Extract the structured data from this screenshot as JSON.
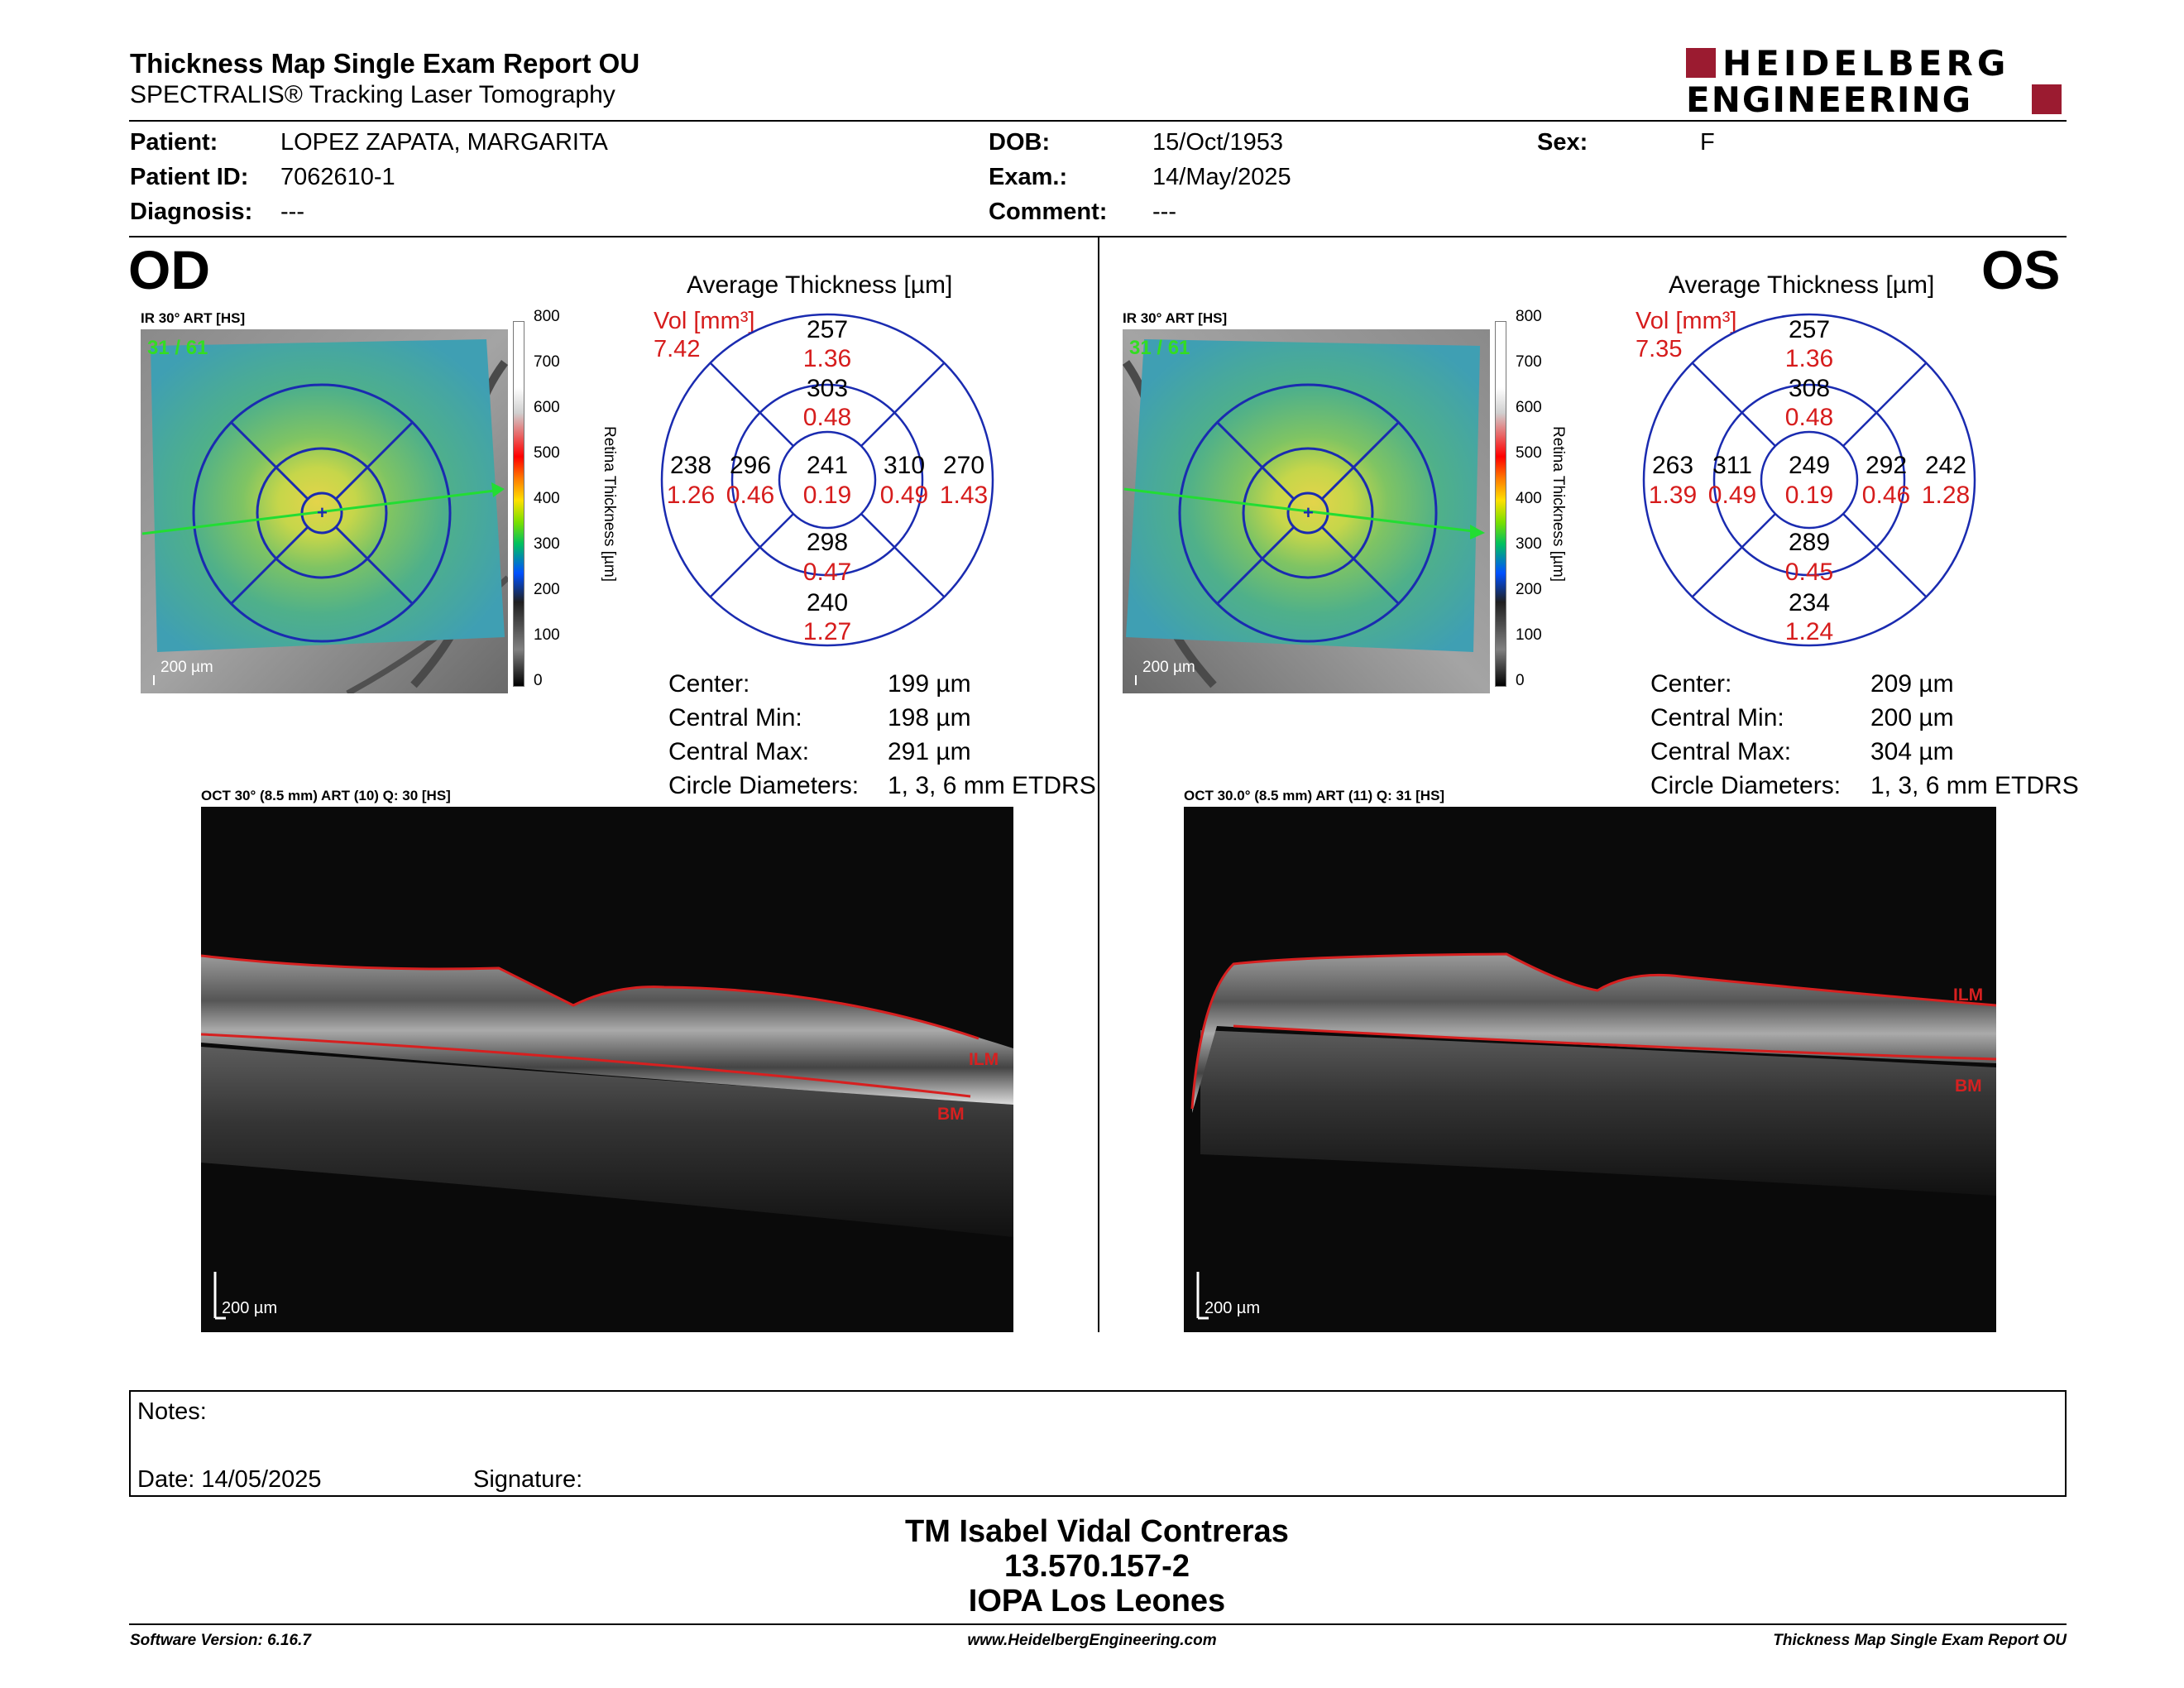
{
  "header": {
    "title": "Thickness Map Single Exam Report OU",
    "subtitle": "SPECTRALIS® Tracking Laser Tomography",
    "logo_line1": "HEIDELBERG",
    "logo_line2": "ENGINEERING",
    "brand_color": "#9b1b30"
  },
  "patient": {
    "patient_label": "Patient:",
    "patient_value": "LOPEZ ZAPATA, MARGARITA",
    "id_label": "Patient ID:",
    "id_value": "7062610-1",
    "diagnosis_label": "Diagnosis:",
    "diagnosis_value": "---",
    "dob_label": "DOB:",
    "dob_value": "15/Oct/1953",
    "exam_label": "Exam.:",
    "exam_value": "14/May/2025",
    "comment_label": "Comment:",
    "comment_value": "---",
    "sex_label": "Sex:",
    "sex_value": "F"
  },
  "scale": {
    "ticks": [
      "800",
      "700",
      "600",
      "500",
      "400",
      "300",
      "200",
      "100",
      "0"
    ],
    "label": "Retina Thickness [µm]"
  },
  "od": {
    "eye": "OD",
    "ir_caption": "IR 30° ART [HS]",
    "ir_count": "31 / 61",
    "ir_scalebar": "200 µm",
    "chart_title": "Average Thickness [µm]",
    "vol_label": "Vol [mm³]",
    "vol_value": "7.42",
    "etdrs": {
      "center_t": "241",
      "center_v": "0.19",
      "inner_sup_t": "303",
      "inner_sup_v": "0.48",
      "inner_inf_t": "298",
      "inner_inf_v": "0.47",
      "inner_left_t": "296",
      "inner_left_v": "0.46",
      "inner_right_t": "310",
      "inner_right_v": "0.49",
      "outer_sup_t": "257",
      "outer_sup_v": "1.36",
      "outer_inf_t": "240",
      "outer_inf_v": "1.27",
      "outer_left_t": "238",
      "outer_left_v": "1.26",
      "outer_right_t": "270",
      "outer_right_v": "1.43"
    },
    "stats": {
      "center_label": "Center:",
      "center_value": "199 µm",
      "min_label": "Central Min:",
      "min_value": "198 µm",
      "max_label": "Central Max:",
      "max_value": "291 µm",
      "diam_label": "Circle Diameters:",
      "diam_value": "1, 3, 6 mm ETDRS"
    },
    "oct_caption": "OCT 30° (8.5 mm) ART (10) Q: 30 [HS]",
    "oct_scalebar": "200 µm",
    "ilm": "ILM",
    "bm": "BM"
  },
  "os": {
    "eye": "OS",
    "ir_caption": "IR 30° ART [HS]",
    "ir_count": "31 / 61",
    "ir_scalebar": "200 µm",
    "chart_title": "Average Thickness [µm]",
    "vol_label": "Vol [mm³]",
    "vol_value": "7.35",
    "etdrs": {
      "center_t": "249",
      "center_v": "0.19",
      "inner_sup_t": "308",
      "inner_sup_v": "0.48",
      "inner_inf_t": "289",
      "inner_inf_v": "0.45",
      "inner_left_t": "311",
      "inner_left_v": "0.49",
      "inner_right_t": "292",
      "inner_right_v": "0.46",
      "outer_sup_t": "257",
      "outer_sup_v": "1.36",
      "outer_inf_t": "234",
      "outer_inf_v": "1.24",
      "outer_left_t": "263",
      "outer_left_v": "1.39",
      "outer_right_t": "242",
      "outer_right_v": "1.28"
    },
    "stats": {
      "center_label": "Center:",
      "center_value": "209 µm",
      "min_label": "Central Min:",
      "min_value": "200 µm",
      "max_label": "Central Max:",
      "max_value": "304 µm",
      "diam_label": "Circle Diameters:",
      "diam_value": "1, 3, 6 mm ETDRS"
    },
    "oct_caption": "OCT 30.0° (8.5 mm) ART (11) Q: 31 [HS]",
    "oct_scalebar": "200 µm",
    "ilm": "ILM",
    "bm": "BM"
  },
  "notes": {
    "notes_label": "Notes:",
    "date_label": "Date: 14/05/2025",
    "signature_label": "Signature:"
  },
  "signature": {
    "name": "TM Isabel Vidal Contreras",
    "rut": "13.570.157-2",
    "institution": "IOPA Los Leones"
  },
  "footer": {
    "software": "Software Version: 6.16.7",
    "url": "www.HeidelbergEngineering.com",
    "report": "Thickness Map Single Exam Report OU"
  },
  "colors": {
    "etdrs_grid": "#1a2bb0",
    "volume_red": "#d61c1c",
    "layer_red": "#d62020"
  }
}
